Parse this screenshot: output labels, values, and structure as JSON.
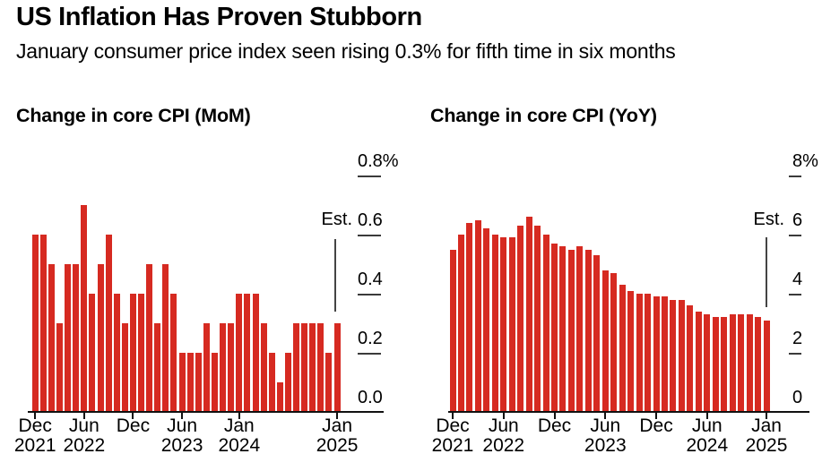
{
  "header": {
    "title": "US Inflation Has Proven Stubborn",
    "subtitle": "January consumer price index seen rising 0.3% for fifth time in six months"
  },
  "chart_data": [
    {
      "type": "bar",
      "title": "Change in core CPI (MoM)",
      "bar_color": "#d62a21",
      "axis_side": "right",
      "grid": "tick-dashes",
      "ylim": [
        0,
        0.8
      ],
      "y_ticks": [
        {
          "label": "0.8%",
          "value": 0.8
        },
        {
          "label": "0.6",
          "value": 0.6
        },
        {
          "label": "0.4",
          "value": 0.4
        },
        {
          "label": "0.2",
          "value": 0.2
        },
        {
          "label": "0.0",
          "value": 0.0
        }
      ],
      "x_ticks": [
        {
          "month": 0,
          "line1": "Dec",
          "line2": "2021"
        },
        {
          "month": 6,
          "line1": "Jun",
          "line2": "2022"
        },
        {
          "month": 12,
          "line1": "Dec",
          "line2": ""
        },
        {
          "month": 18,
          "line1": "Jun",
          "line2": "2023"
        },
        {
          "month": 25,
          "line1": "Jan",
          "line2": "2024"
        },
        {
          "month": 37,
          "line1": "Jan",
          "line2": "2025"
        }
      ],
      "categories": [
        "Dec 2021",
        "Jan 2022",
        "Feb 2022",
        "Mar 2022",
        "Apr 2022",
        "May 2022",
        "Jun 2022",
        "Jul 2022",
        "Aug 2022",
        "Sep 2022",
        "Oct 2022",
        "Nov 2022",
        "Dec 2022",
        "Jan 2023",
        "Feb 2023",
        "Mar 2023",
        "Apr 2023",
        "May 2023",
        "Jun 2023",
        "Jul 2023",
        "Aug 2023",
        "Sep 2023",
        "Oct 2023",
        "Nov 2023",
        "Dec 2023",
        "Jan 2024",
        "Feb 2024",
        "Mar 2024",
        "Apr 2024",
        "May 2024",
        "Jun 2024",
        "Jul 2024",
        "Aug 2024",
        "Sep 2024",
        "Oct 2024",
        "Nov 2024",
        "Dec 2024",
        "Jan 2025"
      ],
      "values": [
        0.6,
        0.6,
        0.5,
        0.3,
        0.5,
        0.5,
        0.7,
        0.4,
        0.5,
        0.6,
        0.4,
        0.3,
        0.4,
        0.4,
        0.5,
        0.3,
        0.5,
        0.4,
        0.2,
        0.2,
        0.2,
        0.3,
        0.2,
        0.3,
        0.3,
        0.4,
        0.4,
        0.4,
        0.3,
        0.2,
        0.1,
        0.2,
        0.3,
        0.3,
        0.3,
        0.3,
        0.2,
        0.3
      ],
      "annotation": {
        "label": "Est.",
        "category": "Jan 2025",
        "value": 0.3
      }
    },
    {
      "type": "bar",
      "title": "Change in core CPI (YoY)",
      "bar_color": "#d62a21",
      "axis_side": "right",
      "grid": "tick-dashes",
      "ylim": [
        0,
        8
      ],
      "y_ticks": [
        {
          "label": "8%",
          "value": 8
        },
        {
          "label": "6",
          "value": 6
        },
        {
          "label": "4",
          "value": 4
        },
        {
          "label": "2",
          "value": 2
        },
        {
          "label": "0",
          "value": 0
        }
      ],
      "x_ticks": [
        {
          "month": 0,
          "line1": "Dec",
          "line2": "2021"
        },
        {
          "month": 6,
          "line1": "Jun",
          "line2": "2022"
        },
        {
          "month": 12,
          "line1": "Dec",
          "line2": ""
        },
        {
          "month": 18,
          "line1": "Jun",
          "line2": "2023"
        },
        {
          "month": 24,
          "line1": "Dec",
          "line2": ""
        },
        {
          "month": 30,
          "line1": "Jun",
          "line2": "2024"
        },
        {
          "month": 37,
          "line1": "Jan",
          "line2": "2025"
        }
      ],
      "categories": [
        "Dec 2021",
        "Jan 2022",
        "Feb 2022",
        "Mar 2022",
        "Apr 2022",
        "May 2022",
        "Jun 2022",
        "Jul 2022",
        "Aug 2022",
        "Sep 2022",
        "Oct 2022",
        "Nov 2022",
        "Dec 2022",
        "Jan 2023",
        "Feb 2023",
        "Mar 2023",
        "Apr 2023",
        "May 2023",
        "Jun 2023",
        "Jul 2023",
        "Aug 2023",
        "Sep 2023",
        "Oct 2023",
        "Nov 2023",
        "Dec 2023",
        "Jan 2024",
        "Feb 2024",
        "Mar 2024",
        "Apr 2024",
        "May 2024",
        "Jun 2024",
        "Jul 2024",
        "Aug 2024",
        "Sep 2024",
        "Oct 2024",
        "Nov 2024",
        "Dec 2024",
        "Jan 2025"
      ],
      "values": [
        5.5,
        6.0,
        6.4,
        6.5,
        6.2,
        6.0,
        5.9,
        5.9,
        6.3,
        6.6,
        6.3,
        6.0,
        5.7,
        5.6,
        5.5,
        5.6,
        5.5,
        5.3,
        4.8,
        4.7,
        4.3,
        4.1,
        4.0,
        4.0,
        3.9,
        3.9,
        3.8,
        3.8,
        3.6,
        3.4,
        3.3,
        3.2,
        3.2,
        3.3,
        3.3,
        3.3,
        3.2,
        3.1
      ],
      "annotation": {
        "label": "Est.",
        "category": "Jan 2025",
        "value": 3.1
      }
    }
  ]
}
